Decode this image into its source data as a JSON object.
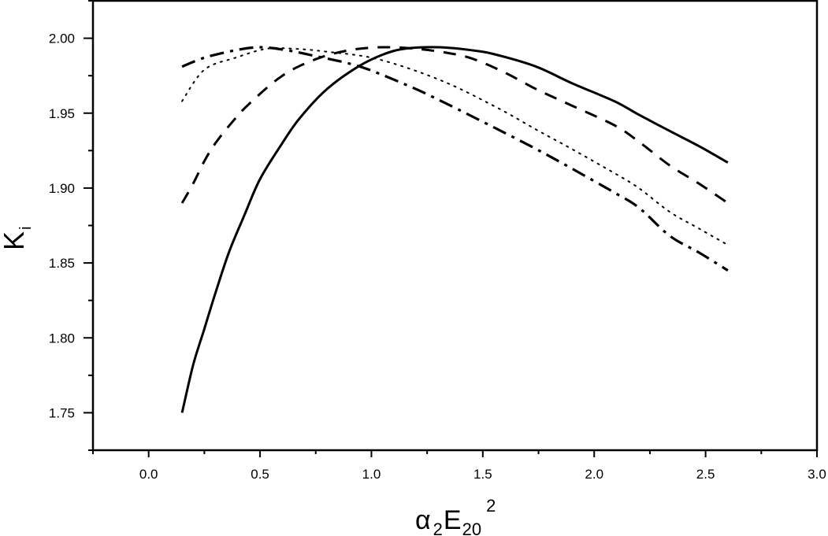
{
  "chart_data": {
    "type": "line",
    "title": "",
    "xlabel": "α2E20^2",
    "xlabel_parts": {
      "base": "α",
      "sub1": "2",
      "main": "E",
      "sub2": "20",
      "sup": "2"
    },
    "ylabel": "Ki",
    "ylabel_parts": {
      "main": "K",
      "sub": "i"
    },
    "xlim": [
      -0.25,
      3.0
    ],
    "ylim": [
      1.725,
      2.025
    ],
    "xticks": [
      0.0,
      0.5,
      1.0,
      1.5,
      2.0,
      2.5,
      3.0
    ],
    "xtick_labels": [
      "0.0",
      "0.5",
      "1.0",
      "1.5",
      "2.0",
      "2.5",
      "3.0"
    ],
    "yticks": [
      1.75,
      1.8,
      1.85,
      1.9,
      1.95,
      2.0
    ],
    "ytick_labels": [
      "1.75",
      "1.80",
      "1.85",
      "1.90",
      "1.95",
      "2.00"
    ],
    "grid": false,
    "legend": null,
    "series": [
      {
        "name": "solid",
        "style": "solid",
        "color": "#000000",
        "x": [
          0.15,
          0.2,
          0.25,
          0.3,
          0.36,
          0.43,
          0.5,
          0.6,
          0.68,
          0.8,
          0.94,
          1.05,
          1.15,
          1.3,
          1.45,
          1.56,
          1.74,
          1.9,
          2.09,
          2.2,
          2.34,
          2.47,
          2.6
        ],
        "y": [
          1.75,
          1.782,
          1.806,
          1.83,
          1.857,
          1.882,
          1.906,
          1.93,
          1.947,
          1.966,
          1.981,
          1.989,
          1.993,
          1.994,
          1.992,
          1.989,
          1.981,
          1.97,
          1.958,
          1.949,
          1.938,
          1.928,
          1.917
        ]
      },
      {
        "name": "dashed",
        "style": "dashed",
        "color": "#000000",
        "x": [
          0.15,
          0.2,
          0.25,
          0.3,
          0.375,
          0.45,
          0.6,
          0.75,
          0.9,
          1.05,
          1.2,
          1.35,
          1.46,
          1.6,
          1.74,
          1.9,
          2.09,
          2.2,
          2.34,
          2.47,
          2.6
        ],
        "y": [
          1.89,
          1.903,
          1.918,
          1.93,
          1.944,
          1.956,
          1.975,
          1.986,
          1.992,
          1.994,
          1.993,
          1.99,
          1.986,
          1.977,
          1.966,
          1.955,
          1.942,
          1.931,
          1.915,
          1.903,
          1.89
        ]
      },
      {
        "name": "dotted",
        "style": "dotted",
        "color": "#000000",
        "x": [
          0.15,
          0.25,
          0.39,
          0.53,
          0.65,
          0.8,
          1.03,
          1.31,
          1.56,
          1.74,
          1.9,
          2.09,
          2.2,
          2.34,
          2.47,
          2.6
        ],
        "y": [
          1.958,
          1.979,
          1.987,
          1.993,
          1.993,
          1.991,
          1.986,
          1.972,
          1.954,
          1.939,
          1.926,
          1.91,
          1.9,
          1.884,
          1.873,
          1.862
        ]
      },
      {
        "name": "dash-dot",
        "style": "dashdot",
        "color": "#000000",
        "x": [
          0.15,
          0.25,
          0.39,
          0.5,
          0.62,
          0.75,
          0.95,
          1.17,
          1.3,
          1.49,
          1.74,
          1.9,
          2.09,
          2.2,
          2.34,
          2.47,
          2.6
        ],
        "y": [
          1.981,
          1.987,
          1.992,
          1.994,
          1.992,
          1.988,
          1.981,
          1.968,
          1.959,
          1.945,
          1.926,
          1.913,
          1.897,
          1.887,
          1.868,
          1.857,
          1.845
        ]
      }
    ]
  }
}
